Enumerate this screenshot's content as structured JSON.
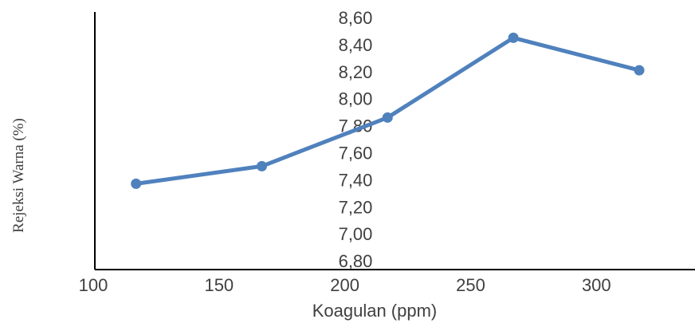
{
  "chart_data": {
    "type": "line",
    "xlabel": "Koagulan (ppm)",
    "ylabel": "Rejeksi Warna (%)",
    "xlim": [
      100,
      330
    ],
    "ylim": [
      6.7,
      8.7
    ],
    "x_ticks": [
      "100",
      "150",
      "200",
      "250",
      "300"
    ],
    "y_ticks": [
      "6,80",
      "7,00",
      "7,20",
      "7,40",
      "7,60",
      "7,80",
      "8,00",
      "8,20",
      "8,40",
      "8,60"
    ],
    "grid": false,
    "series": [
      {
        "color": "#4F81BD",
        "x": [
          117,
          167,
          217,
          267,
          317
        ],
        "y": [
          7.37,
          7.5,
          7.86,
          8.45,
          8.21
        ]
      }
    ]
  }
}
